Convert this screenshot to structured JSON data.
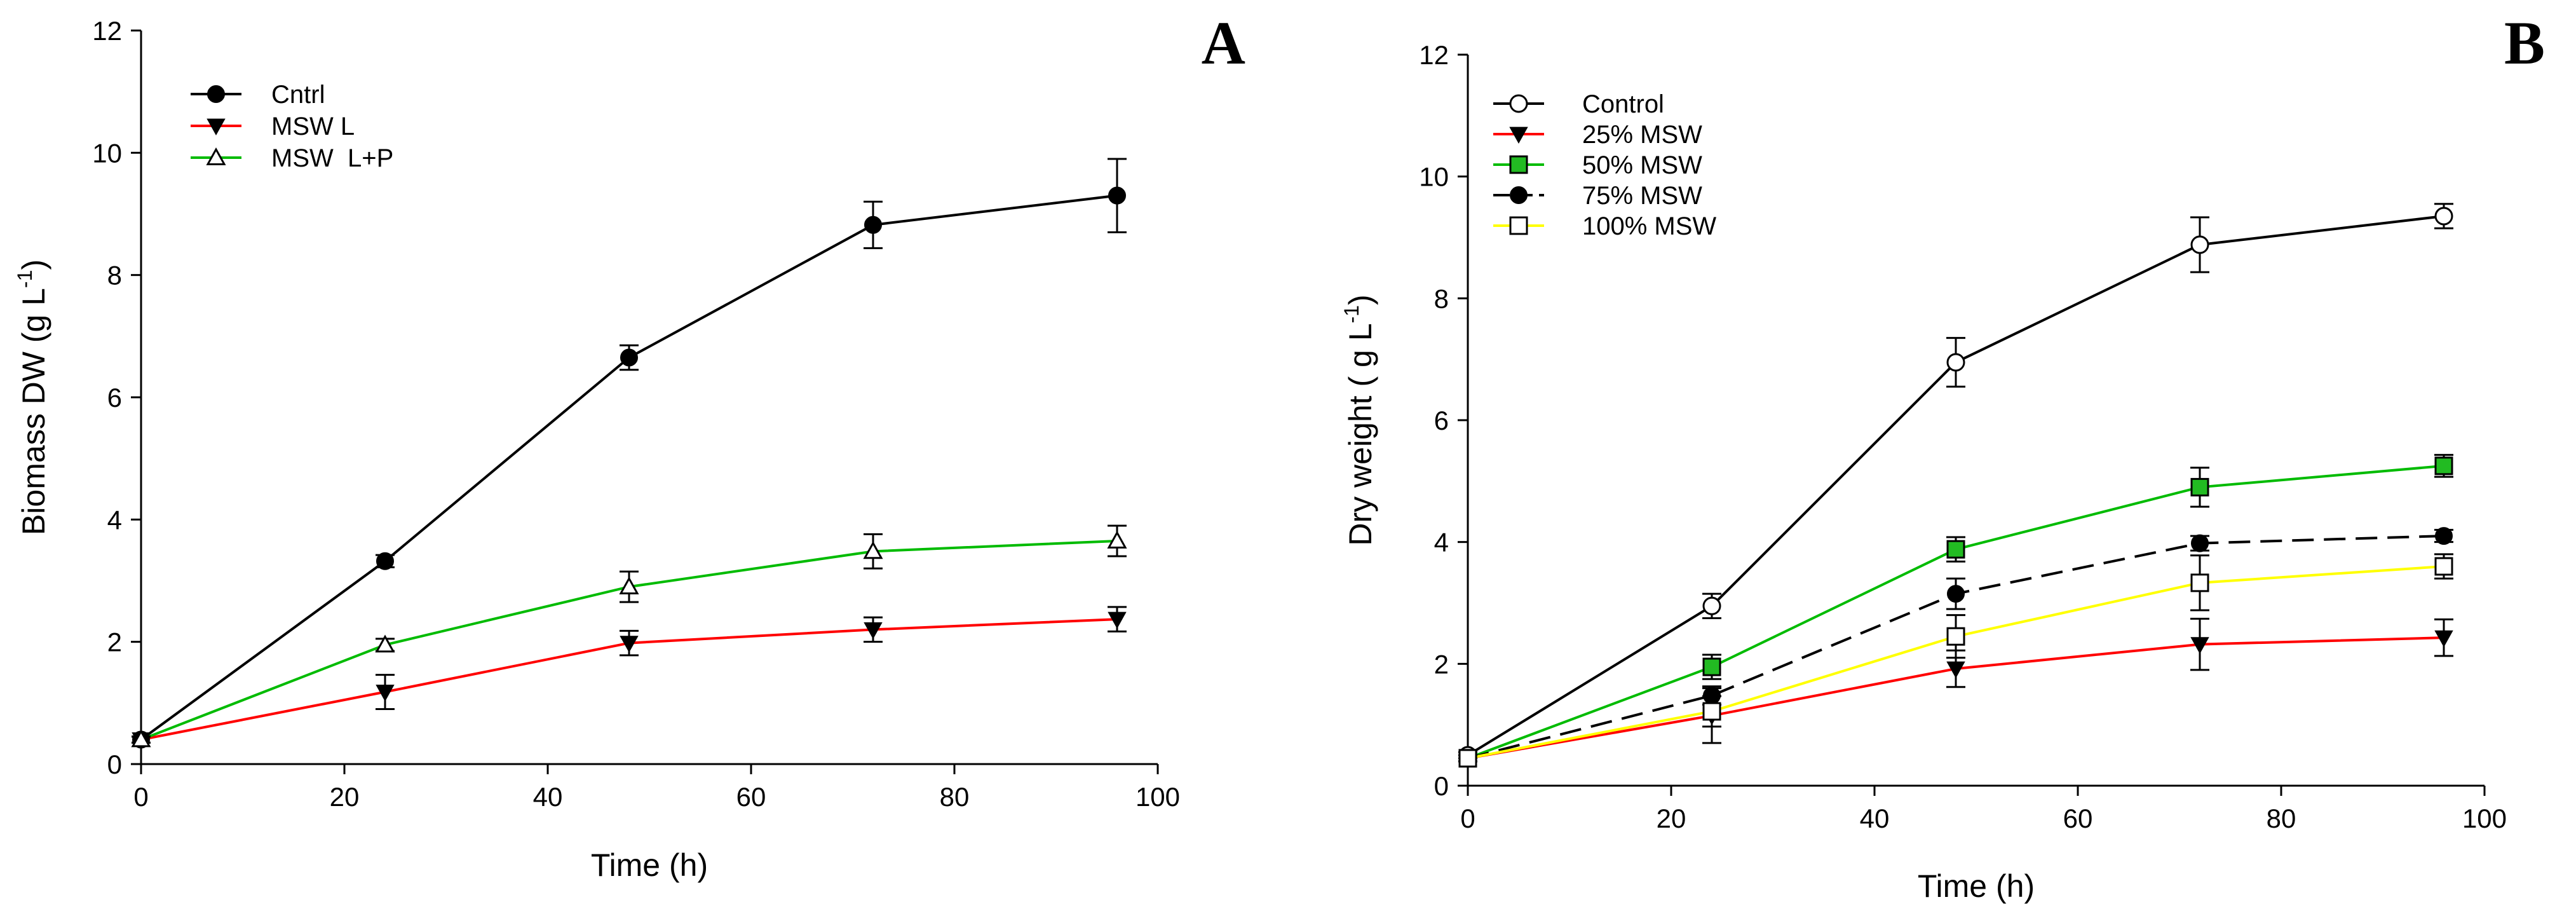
{
  "chart_data": [
    {
      "panel": "A",
      "type": "line",
      "xlabel": "Time (h)",
      "ylabel": {
        "main": "Biomass DW (g L",
        "sup": "-1",
        "close": ")"
      },
      "xlim": [
        0,
        100
      ],
      "ylim": [
        0,
        12
      ],
      "xticks": [
        0,
        20,
        40,
        60,
        80,
        100
      ],
      "yticks": [
        0,
        2,
        4,
        6,
        8,
        10,
        12
      ],
      "legend_position": "top-left",
      "series": [
        {
          "name": "Cntrl",
          "color": "#000000",
          "marker": "filled-circle",
          "dash": "solid",
          "x": [
            0,
            24,
            48,
            72,
            96
          ],
          "y": [
            0.4,
            3.32,
            6.65,
            8.82,
            9.3
          ],
          "err": [
            0.05,
            0.1,
            0.2,
            0.38,
            0.6
          ]
        },
        {
          "name": "MSW L",
          "color": "#ff0000",
          "marker": "filled-triangle-down",
          "dash": "solid",
          "x": [
            0,
            24,
            48,
            72,
            96
          ],
          "y": [
            0.4,
            1.18,
            1.98,
            2.2,
            2.37
          ],
          "err": [
            0.05,
            0.28,
            0.2,
            0.2,
            0.2
          ]
        },
        {
          "name": "MSW  L+P",
          "color": "#00bb00",
          "marker": "open-triangle-up",
          "dash": "solid",
          "x": [
            0,
            24,
            48,
            72,
            96
          ],
          "y": [
            0.4,
            1.95,
            2.9,
            3.48,
            3.65
          ],
          "err": [
            0.05,
            0.1,
            0.25,
            0.28,
            0.25
          ]
        }
      ]
    },
    {
      "panel": "B",
      "type": "line",
      "xlabel": "Time (h)",
      "ylabel": {
        "main": "Dry weight ( g L",
        "sup": "-1",
        "close": ")"
      },
      "xlim": [
        0,
        100
      ],
      "ylim": [
        0,
        12
      ],
      "xticks": [
        0,
        20,
        40,
        60,
        80,
        100
      ],
      "yticks": [
        0,
        2,
        4,
        6,
        8,
        10,
        12
      ],
      "legend_position": "top-left",
      "series": [
        {
          "name": "Control",
          "color": "#000000",
          "marker": "open-circle",
          "dash": "solid",
          "x": [
            0,
            24,
            48,
            72,
            96
          ],
          "y": [
            0.5,
            2.95,
            6.95,
            8.88,
            9.35
          ],
          "err": [
            0.05,
            0.2,
            0.4,
            0.45,
            0.2
          ]
        },
        {
          "name": "25% MSW",
          "color": "#ff0000",
          "marker": "filled-triangle-down",
          "dash": "solid",
          "x": [
            0,
            24,
            48,
            72,
            96
          ],
          "y": [
            0.45,
            1.15,
            1.92,
            2.32,
            2.43
          ],
          "err": [
            0.05,
            0.45,
            0.3,
            0.42,
            0.3
          ]
        },
        {
          "name": "50% MSW",
          "color": "#00bb00",
          "marker": "filled-square-green",
          "dash": "solid",
          "x": [
            0,
            24,
            48,
            72,
            96
          ],
          "y": [
            0.45,
            1.95,
            3.88,
            4.9,
            5.25
          ],
          "err": [
            0.05,
            0.2,
            0.2,
            0.32,
            0.18
          ]
        },
        {
          "name": "75% MSW",
          "color": "#000000",
          "marker": "filled-circle",
          "dash": "dashed",
          "x": [
            0,
            24,
            48,
            72,
            96
          ],
          "y": [
            0.45,
            1.48,
            3.15,
            3.98,
            4.1
          ],
          "err": [
            0.05,
            0.15,
            0.25,
            0.12,
            0.1
          ]
        },
        {
          "name": "100% MSW",
          "color": "#ffff00",
          "marker": "open-square",
          "dash": "solid",
          "x": [
            0,
            24,
            48,
            72,
            96
          ],
          "y": [
            0.45,
            1.22,
            2.45,
            3.33,
            3.6
          ],
          "err": [
            0.05,
            0.25,
            0.35,
            0.45,
            0.2
          ]
        }
      ]
    }
  ]
}
